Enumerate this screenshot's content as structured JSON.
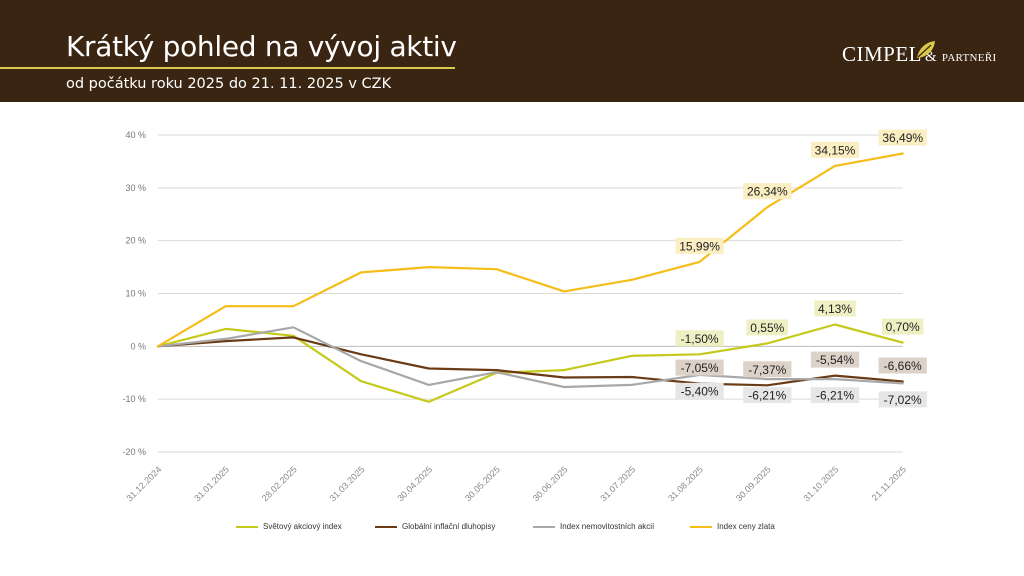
{
  "header": {
    "title": "Krátký pohled na vývoj aktiv",
    "subtitle": "od počátku roku 2025 do 21. 11. 2025 v CZK",
    "logo_main": "CIMPEL",
    "logo_amp": "&",
    "logo_small": "PARTNEŘI"
  },
  "colors": {
    "header_bg": "#3a2513",
    "accent": "#d8c94a"
  },
  "chart_data": {
    "type": "line",
    "title": "",
    "xlabel": "",
    "ylabel": "",
    "ylim": [
      -20,
      40
    ],
    "y_ticks": [
      "40 %",
      "30 %",
      "20 %",
      "10 %",
      "0 %",
      "-10 %",
      "-20 %"
    ],
    "y_tick_values": [
      40,
      30,
      20,
      10,
      0,
      -10,
      -20
    ],
    "grid": true,
    "legend_position": "bottom",
    "categories": [
      "31.12.2024",
      "31.01.2025",
      "28.02.2025",
      "31.03.2025",
      "30.04.2025",
      "30.05.2025",
      "30.06.2025",
      "31.07.2025",
      "31.08.2025",
      "30.09.2025",
      "31.10.2025",
      "21.11.2025"
    ],
    "series": [
      {
        "name": "Světový akciový index",
        "color": "#c5c91a",
        "values": [
          0,
          3.3,
          2.0,
          -6.6,
          -10.5,
          -5.0,
          -4.5,
          -1.8,
          -1.5,
          0.55,
          4.13,
          0.7
        ],
        "labels": [
          null,
          null,
          null,
          null,
          null,
          null,
          null,
          null,
          "-1,50%",
          "0,55%",
          "4,13%",
          "0,70%"
        ],
        "label_bg": "#eef0c4",
        "label_side": "above"
      },
      {
        "name": "Globální inflační dluhopisy",
        "color": "#6a3b14",
        "values": [
          0,
          1.0,
          1.7,
          -1.5,
          -4.2,
          -4.5,
          -5.9,
          -5.8,
          -7.05,
          -7.37,
          -5.54,
          -6.66
        ],
        "labels": [
          null,
          null,
          null,
          null,
          null,
          null,
          null,
          null,
          "-7,05%",
          "-7,37%",
          "-5,54%",
          "-6,66%"
        ],
        "label_bg": "#ddd2c8",
        "label_side": "above"
      },
      {
        "name": "Index nemovitostních akcií",
        "color": "#a8a8a8",
        "values": [
          0,
          1.4,
          3.6,
          -2.8,
          -7.3,
          -4.9,
          -7.7,
          -7.3,
          -5.4,
          -6.21,
          -6.21,
          -7.02
        ],
        "labels": [
          null,
          null,
          null,
          null,
          null,
          null,
          null,
          null,
          "-5,40%",
          "-6,21%",
          "-6,21%",
          "-7,02%"
        ],
        "label_bg": "#e6e6e6",
        "label_side": "below"
      },
      {
        "name": "Index ceny zlata",
        "color": "#f5bd17",
        "values": [
          0,
          7.6,
          7.6,
          14.0,
          15.0,
          14.6,
          10.4,
          12.6,
          15.99,
          26.34,
          34.15,
          36.49
        ],
        "labels": [
          null,
          null,
          null,
          null,
          null,
          null,
          null,
          null,
          "15,99%",
          "26,34%",
          "34,15%",
          "36,49%"
        ],
        "label_bg": "#faeec2",
        "label_side": "above"
      }
    ]
  }
}
